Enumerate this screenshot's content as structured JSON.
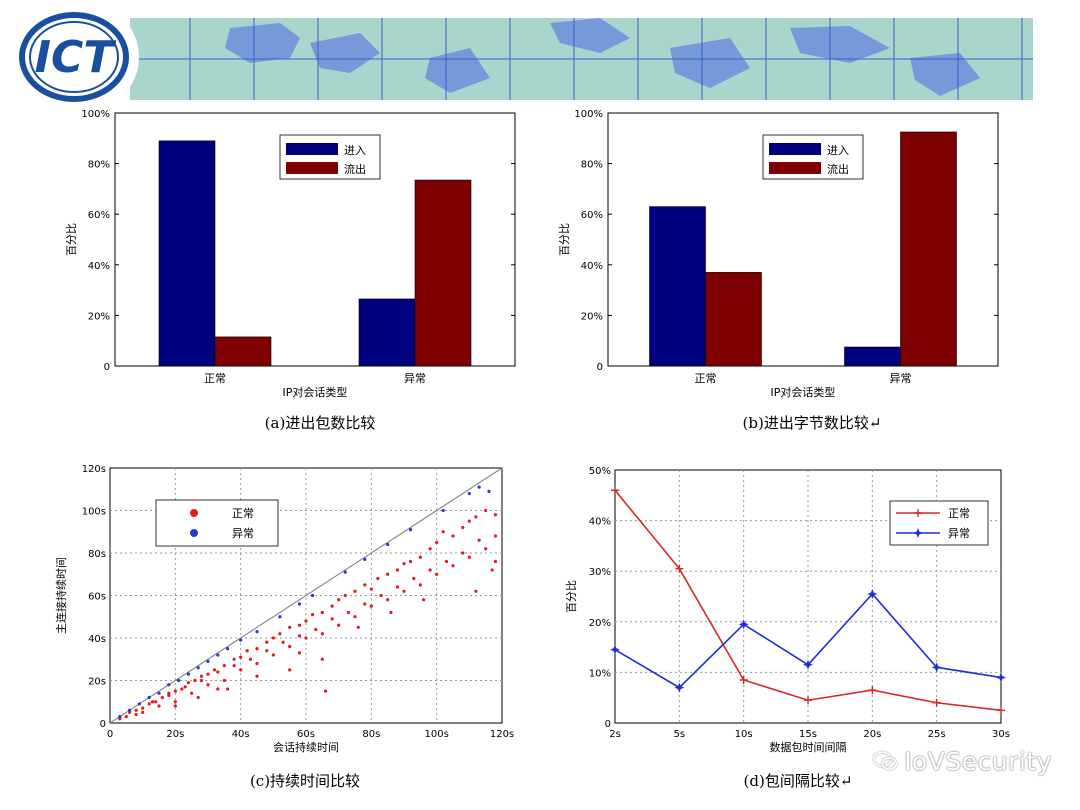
{
  "header": {
    "logo_text": "ICT",
    "logo_colors": {
      "ring": "#1a4fa0",
      "text": "#1a4fa0"
    },
    "banner_colors": {
      "sea": "#a9d5cc",
      "land": "#6f8edb",
      "grid": "#3a5fd0"
    }
  },
  "watermark": {
    "text": "IoVSecurity",
    "icon": "wechat-icon"
  },
  "chart_data": [
    {
      "id": "a",
      "type": "bar",
      "caption": "(a)进出包数比较",
      "xlabel": "IP对会话类型",
      "ylabel": "百分比",
      "categories": [
        "正常",
        "异常"
      ],
      "ylim": [
        0,
        100
      ],
      "yticks": [
        "0",
        "20%",
        "40%",
        "60%",
        "80%",
        "100%"
      ],
      "legend_position": "top-center",
      "series": [
        {
          "name": "进入",
          "color": "#00007f",
          "values": [
            89,
            26.5
          ]
        },
        {
          "name": "流出",
          "color": "#7f0000",
          "values": [
            11.5,
            73.5
          ]
        }
      ]
    },
    {
      "id": "b",
      "type": "bar",
      "caption": "(b)进出字节数比较↵",
      "xlabel": "IP对会话类型",
      "ylabel": "百分比",
      "categories": [
        "正常",
        "异常"
      ],
      "ylim": [
        0,
        100
      ],
      "yticks": [
        "0",
        "20%",
        "40%",
        "60%",
        "80%",
        "100%"
      ],
      "legend_position": "top-center",
      "series": [
        {
          "name": "进入",
          "color": "#00007f",
          "values": [
            63,
            7.5
          ]
        },
        {
          "name": "流出",
          "color": "#7f0000",
          "values": [
            37,
            92.5
          ]
        }
      ]
    },
    {
      "id": "c",
      "type": "scatter",
      "caption": "(c)持续时间比较",
      "xlabel": "会话持续时间",
      "ylabel": "主连接持续时间",
      "xlim": [
        0,
        120
      ],
      "ylim": [
        0,
        120
      ],
      "xticks": [
        "0",
        "20s",
        "40s",
        "60s",
        "80s",
        "100s",
        "120s"
      ],
      "yticks": [
        "0",
        "20s",
        "40s",
        "60s",
        "80s",
        "100s",
        "120s"
      ],
      "grid": true,
      "legend_position": "top-left",
      "reference_line": {
        "from": [
          0,
          0
        ],
        "to": [
          120,
          120
        ],
        "color": "#888888"
      },
      "series": [
        {
          "name": "正常",
          "color": "#e41a1c",
          "points": [
            [
              3,
              2
            ],
            [
              5,
              3
            ],
            [
              6,
              5
            ],
            [
              8,
              4
            ],
            [
              10,
              7
            ],
            [
              12,
              9
            ],
            [
              14,
              10
            ],
            [
              16,
              12
            ],
            [
              18,
              13
            ],
            [
              20,
              15
            ],
            [
              22,
              16
            ],
            [
              24,
              19
            ],
            [
              26,
              20
            ],
            [
              28,
              22
            ],
            [
              30,
              23
            ],
            [
              32,
              25
            ],
            [
              35,
              27
            ],
            [
              38,
              30
            ],
            [
              40,
              31
            ],
            [
              42,
              34
            ],
            [
              45,
              35
            ],
            [
              48,
              38
            ],
            [
              50,
              40
            ],
            [
              52,
              42
            ],
            [
              55,
              45
            ],
            [
              58,
              46
            ],
            [
              60,
              48
            ],
            [
              62,
              51
            ],
            [
              65,
              52
            ],
            [
              68,
              55
            ],
            [
              70,
              58
            ],
            [
              72,
              60
            ],
            [
              75,
              62
            ],
            [
              78,
              65
            ],
            [
              80,
              63
            ],
            [
              82,
              68
            ],
            [
              85,
              70
            ],
            [
              88,
              72
            ],
            [
              90,
              75
            ],
            [
              92,
              76
            ],
            [
              95,
              78
            ],
            [
              98,
              82
            ],
            [
              100,
              85
            ],
            [
              102,
              90
            ],
            [
              105,
              88
            ],
            [
              108,
              92
            ],
            [
              110,
              95
            ],
            [
              112,
              97
            ],
            [
              115,
              100
            ],
            [
              118,
              98
            ],
            [
              10,
              5
            ],
            [
              15,
              8
            ],
            [
              20,
              10
            ],
            [
              25,
              14
            ],
            [
              30,
              18
            ],
            [
              35,
              20
            ],
            [
              40,
              25
            ],
            [
              45,
              28
            ],
            [
              50,
              32
            ],
            [
              55,
              36
            ],
            [
              60,
              40
            ],
            [
              65,
              42
            ],
            [
              70,
              46
            ],
            [
              75,
              50
            ],
            [
              80,
              55
            ],
            [
              85,
              58
            ],
            [
              90,
              62
            ],
            [
              95,
              65
            ],
            [
              100,
              70
            ],
            [
              105,
              74
            ],
            [
              110,
              78
            ],
            [
              115,
              82
            ],
            [
              118,
              76
            ],
            [
              8,
              6
            ],
            [
              13,
              10
            ],
            [
              18,
              14
            ],
            [
              23,
              17
            ],
            [
              28,
              20
            ],
            [
              33,
              24
            ],
            [
              38,
              27
            ],
            [
              43,
              30
            ],
            [
              48,
              34
            ],
            [
              53,
              38
            ],
            [
              58,
              41
            ],
            [
              63,
              44
            ],
            [
              68,
              49
            ],
            [
              73,
              52
            ],
            [
              78,
              56
            ],
            [
              83,
              60
            ],
            [
              88,
              64
            ],
            [
              93,
              68
            ],
            [
              98,
              72
            ],
            [
              103,
              76
            ],
            [
              108,
              80
            ],
            [
              113,
              86
            ],
            [
              118,
              88
            ],
            [
              27,
              12
            ],
            [
              33,
              16
            ],
            [
              45,
              22
            ],
            [
              55,
              25
            ],
            [
              65,
              30
            ],
            [
              66,
              15
            ],
            [
              20,
              8
            ],
            [
              36,
              16
            ],
            [
              58,
              33
            ],
            [
              76,
              45
            ],
            [
              86,
              52
            ],
            [
              96,
              58
            ],
            [
              112,
              62
            ],
            [
              117,
              72
            ]
          ]
        },
        {
          "name": "异常",
          "color": "#1f3fd4",
          "points": [
            [
              3,
              3
            ],
            [
              6,
              6
            ],
            [
              9,
              9
            ],
            [
              12,
              12
            ],
            [
              15,
              14
            ],
            [
              18,
              18
            ],
            [
              21,
              20
            ],
            [
              24,
              23
            ],
            [
              27,
              26
            ],
            [
              30,
              29
            ],
            [
              33,
              32
            ],
            [
              36,
              35
            ],
            [
              40,
              39
            ],
            [
              45,
              43
            ],
            [
              52,
              50
            ],
            [
              58,
              56
            ],
            [
              62,
              60
            ],
            [
              72,
              71
            ],
            [
              78,
              77
            ],
            [
              85,
              84
            ],
            [
              92,
              91
            ],
            [
              102,
              100
            ],
            [
              110,
              108
            ],
            [
              113,
              111
            ],
            [
              116,
              109
            ]
          ]
        }
      ]
    },
    {
      "id": "d",
      "type": "line",
      "caption": "(d)包间隔比较↵",
      "xlabel": "数据包时间间隔",
      "ylabel": "百分比",
      "categories": [
        "2s",
        "5s",
        "10s",
        "15s",
        "20s",
        "25s",
        "30s"
      ],
      "ylim": [
        0,
        50
      ],
      "yticks": [
        "0",
        "10%",
        "20%",
        "30%",
        "40%",
        "50%"
      ],
      "grid": true,
      "legend_position": "top-right",
      "series": [
        {
          "name": "正常",
          "color": "#d62728",
          "marker": "plus",
          "values": [
            46,
            30.5,
            8.5,
            4.5,
            6.5,
            4,
            2.5
          ]
        },
        {
          "name": "异常",
          "color": "#1f2fd4",
          "marker": "star",
          "values": [
            14.5,
            7,
            19.5,
            11.5,
            25.5,
            11,
            9
          ]
        }
      ]
    }
  ]
}
